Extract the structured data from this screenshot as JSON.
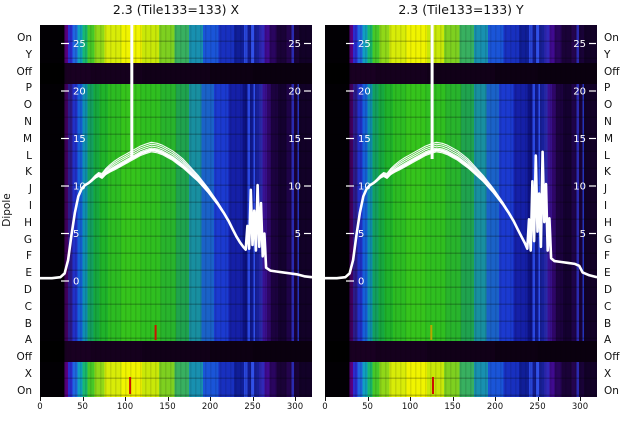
{
  "figure": {
    "ylabel": "Dipole",
    "dipole_labels": [
      "On",
      "Y",
      "Off",
      "P",
      "O",
      "N",
      "M",
      "L",
      "K",
      "J",
      "I",
      "H",
      "G",
      "F",
      "E",
      "D",
      "C",
      "B",
      "A",
      "Off",
      "X",
      "On"
    ],
    "x_tick_labels": [
      "0",
      "50",
      "100",
      "150",
      "200",
      "250",
      "300"
    ],
    "x_tick_values": [
      0,
      50,
      100,
      150,
      200,
      250,
      300
    ],
    "inner_ytick_labels_left": [
      "25",
      "20",
      "15",
      "10",
      "5",
      "0"
    ],
    "inner_ytick_values_left": [
      25,
      20,
      15,
      10,
      5,
      0
    ],
    "inner_ytick_labels_right": [
      "25",
      "20",
      "15",
      "10",
      "5"
    ],
    "inner_ytick_values_right": [
      25,
      20,
      15,
      10,
      5
    ],
    "colors": {
      "curve": "#ffffff",
      "vline": "#ffffff",
      "text": "#111111",
      "inner_text": "#ffffff"
    }
  },
  "chart_data": {
    "type": "heatmap",
    "shared": {
      "x_range": [
        0,
        320
      ],
      "value_axis_ticks": [
        25,
        20,
        15,
        10,
        5,
        0
      ],
      "stripe_sets": {
        "main": [
          [
            0,
            29,
            "#020004"
          ],
          [
            29,
            33,
            "#42005e"
          ],
          [
            33,
            38,
            "#2b1b8a"
          ],
          [
            38,
            44,
            "#2130c8"
          ],
          [
            44,
            50,
            "#1560d8"
          ],
          [
            50,
            56,
            "#0f8fb0"
          ],
          [
            56,
            63,
            "#13a060"
          ],
          [
            63,
            70,
            "#16a83e"
          ],
          [
            70,
            80,
            "#1fb32a"
          ],
          [
            80,
            95,
            "#2cbc22"
          ],
          [
            95,
            118,
            "#35c41c"
          ],
          [
            118,
            142,
            "#2fbf20"
          ],
          [
            142,
            160,
            "#28b42c"
          ],
          [
            160,
            175,
            "#1fa34e"
          ],
          [
            175,
            190,
            "#188fa0"
          ],
          [
            190,
            205,
            "#1a62c8"
          ],
          [
            205,
            222,
            "#1b3ad0"
          ],
          [
            222,
            238,
            "#1520a8"
          ],
          [
            238,
            244,
            "#0d1280"
          ],
          [
            244,
            247,
            "#2a48e0"
          ],
          [
            247,
            251,
            "#101a90"
          ],
          [
            251,
            253,
            "#3050e8"
          ],
          [
            253,
            258,
            "#18209a"
          ],
          [
            258,
            262,
            "#2b2bb0"
          ],
          [
            262,
            267,
            "#3a1090"
          ],
          [
            267,
            272,
            "#2e0668"
          ],
          [
            272,
            280,
            "#1c0240"
          ],
          [
            280,
            290,
            "#140130"
          ],
          [
            290,
            296,
            "#1e0348"
          ],
          [
            296,
            299,
            "#2a2ab0"
          ],
          [
            299,
            303,
            "#190238"
          ],
          [
            303,
            305,
            "#2333b8"
          ],
          [
            305,
            320,
            "#120128"
          ]
        ],
        "hot": [
          [
            0,
            29,
            "#020004"
          ],
          [
            29,
            33,
            "#5a0080"
          ],
          [
            33,
            38,
            "#2b2bd0"
          ],
          [
            38,
            44,
            "#1f66e0"
          ],
          [
            44,
            50,
            "#10a0c0"
          ],
          [
            50,
            56,
            "#18b870"
          ],
          [
            56,
            64,
            "#46c828"
          ],
          [
            64,
            76,
            "#90d818"
          ],
          [
            76,
            96,
            "#d8ec08"
          ],
          [
            96,
            120,
            "#f0f400"
          ],
          [
            120,
            140,
            "#c8e808"
          ],
          [
            140,
            158,
            "#7ed020"
          ],
          [
            158,
            175,
            "#38b060"
          ],
          [
            175,
            192,
            "#1890b0"
          ],
          [
            192,
            210,
            "#1a55d8"
          ],
          [
            210,
            228,
            "#1830c0"
          ],
          [
            228,
            240,
            "#101e98"
          ],
          [
            240,
            244,
            "#2a48e0"
          ],
          [
            244,
            248,
            "#121a8a"
          ],
          [
            248,
            252,
            "#3050e8"
          ],
          [
            252,
            258,
            "#182098"
          ],
          [
            258,
            264,
            "#3028b8"
          ],
          [
            264,
            270,
            "#400a90"
          ],
          [
            270,
            278,
            "#2a0560"
          ],
          [
            278,
            290,
            "#1a0238"
          ],
          [
            290,
            296,
            "#24044e"
          ],
          [
            296,
            299,
            "#2a2ab0"
          ],
          [
            299,
            305,
            "#190238"
          ],
          [
            305,
            320,
            "#120128"
          ]
        ],
        "off": [
          [
            0,
            29,
            "#000000"
          ],
          [
            29,
            60,
            "#190022"
          ],
          [
            60,
            120,
            "#15001d"
          ],
          [
            120,
            200,
            "#110018"
          ],
          [
            200,
            250,
            "#0d0013"
          ],
          [
            250,
            320,
            "#0a000f"
          ]
        ]
      },
      "bands": [
        {
          "y0": 0.0,
          "y1": 0.102,
          "set": "hot",
          "rows": true
        },
        {
          "y0": 0.102,
          "y1": 0.158,
          "set": "off",
          "rows": false
        },
        {
          "y0": 0.158,
          "y1": 0.849,
          "set": "main",
          "rows": true
        },
        {
          "y0": 0.849,
          "y1": 0.906,
          "set": "off",
          "rows": false
        },
        {
          "y0": 0.906,
          "y1": 1.0,
          "set": "hot",
          "rows": true
        }
      ]
    },
    "panels": [
      {
        "title": "2.3 (Tile133=133) X",
        "vline_x": 108,
        "marks": [
          {
            "x": 136,
            "row": "mid",
            "color": "#cc1100"
          },
          {
            "x": 106,
            "row": "bottom",
            "color": "#cc1100"
          }
        ],
        "curve": [
          [
            0,
            0.3
          ],
          [
            14,
            0.3
          ],
          [
            24,
            0.4
          ],
          [
            29,
            0.8
          ],
          [
            33,
            2.2
          ],
          [
            37,
            4.8
          ],
          [
            41,
            7.2
          ],
          [
            45,
            8.9
          ],
          [
            49,
            9.7
          ],
          [
            53,
            10.1
          ],
          [
            57,
            10.3
          ],
          [
            61,
            10.6
          ],
          [
            65,
            10.9
          ],
          [
            69,
            11.1
          ],
          [
            73,
            10.9
          ],
          [
            77,
            11.3
          ],
          [
            82,
            11.6
          ],
          [
            88,
            11.9
          ],
          [
            94,
            12.2
          ],
          [
            100,
            12.5
          ],
          [
            106,
            12.8
          ],
          [
            112,
            13.1
          ],
          [
            118,
            13.4
          ],
          [
            124,
            13.6
          ],
          [
            131,
            13.8
          ],
          [
            138,
            13.7
          ],
          [
            144,
            13.5
          ],
          [
            150,
            13.2
          ],
          [
            156,
            12.9
          ],
          [
            162,
            12.5
          ],
          [
            168,
            12.1
          ],
          [
            174,
            11.6
          ],
          [
            180,
            11.1
          ],
          [
            186,
            10.6
          ],
          [
            192,
            10.0
          ],
          [
            198,
            9.4
          ],
          [
            204,
            8.7
          ],
          [
            210,
            8.0
          ],
          [
            216,
            7.2
          ],
          [
            222,
            6.3
          ],
          [
            227,
            5.4
          ],
          [
            231,
            4.7
          ],
          [
            235,
            4.1
          ],
          [
            239,
            3.6
          ],
          [
            242,
            3.3
          ],
          [
            244,
            5.8
          ],
          [
            246,
            3.4
          ],
          [
            248,
            9.6
          ],
          [
            250,
            3.8
          ],
          [
            252,
            7.4
          ],
          [
            254,
            3.2
          ],
          [
            256,
            10.1
          ],
          [
            258,
            3.6
          ],
          [
            260,
            8.2
          ],
          [
            262,
            2.6
          ],
          [
            264,
            5.0
          ],
          [
            266,
            1.4
          ],
          [
            271,
            1.1
          ],
          [
            278,
            1.0
          ],
          [
            286,
            0.9
          ],
          [
            294,
            0.8
          ],
          [
            302,
            0.7
          ],
          [
            311,
            0.5
          ],
          [
            320,
            0.4
          ]
        ]
      },
      {
        "title": "2.3 (Tile133=133) Y",
        "vline_x": 126,
        "marks": [
          {
            "x": 125,
            "row": "mid",
            "color": "#b8a800"
          },
          {
            "x": 127,
            "row": "bottom",
            "color": "#cc1100"
          }
        ],
        "curve": [
          [
            0,
            0.3
          ],
          [
            14,
            0.3
          ],
          [
            24,
            0.4
          ],
          [
            29,
            0.8
          ],
          [
            33,
            2.2
          ],
          [
            37,
            4.8
          ],
          [
            41,
            7.2
          ],
          [
            45,
            8.9
          ],
          [
            49,
            9.7
          ],
          [
            53,
            10.1
          ],
          [
            57,
            10.3
          ],
          [
            61,
            10.6
          ],
          [
            65,
            10.9
          ],
          [
            69,
            11.1
          ],
          [
            73,
            10.9
          ],
          [
            77,
            11.3
          ],
          [
            82,
            11.6
          ],
          [
            88,
            11.9
          ],
          [
            94,
            12.2
          ],
          [
            100,
            12.5
          ],
          [
            106,
            12.8
          ],
          [
            112,
            13.1
          ],
          [
            118,
            13.4
          ],
          [
            124,
            13.6
          ],
          [
            131,
            13.8
          ],
          [
            138,
            13.7
          ],
          [
            144,
            13.5
          ],
          [
            150,
            13.2
          ],
          [
            156,
            12.9
          ],
          [
            162,
            12.5
          ],
          [
            168,
            12.1
          ],
          [
            174,
            11.6
          ],
          [
            180,
            11.1
          ],
          [
            186,
            10.6
          ],
          [
            192,
            10.0
          ],
          [
            198,
            9.4
          ],
          [
            204,
            8.7
          ],
          [
            210,
            8.0
          ],
          [
            216,
            7.2
          ],
          [
            222,
            6.3
          ],
          [
            227,
            5.4
          ],
          [
            231,
            4.7
          ],
          [
            235,
            4.0
          ],
          [
            238,
            3.4
          ],
          [
            240,
            6.5
          ],
          [
            242,
            3.2
          ],
          [
            244,
            10.5
          ],
          [
            246,
            4.2
          ],
          [
            248,
            13.2
          ],
          [
            250,
            5.2
          ],
          [
            252,
            9.2
          ],
          [
            254,
            3.6
          ],
          [
            256,
            13.6
          ],
          [
            258,
            6.2
          ],
          [
            260,
            10.2
          ],
          [
            262,
            3.2
          ],
          [
            264,
            6.6
          ],
          [
            266,
            2.4
          ],
          [
            270,
            2.1
          ],
          [
            278,
            2.0
          ],
          [
            286,
            1.9
          ],
          [
            294,
            1.8
          ],
          [
            299,
            1.6
          ],
          [
            303,
            0.9
          ],
          [
            311,
            0.6
          ],
          [
            320,
            0.4
          ]
        ]
      }
    ]
  }
}
